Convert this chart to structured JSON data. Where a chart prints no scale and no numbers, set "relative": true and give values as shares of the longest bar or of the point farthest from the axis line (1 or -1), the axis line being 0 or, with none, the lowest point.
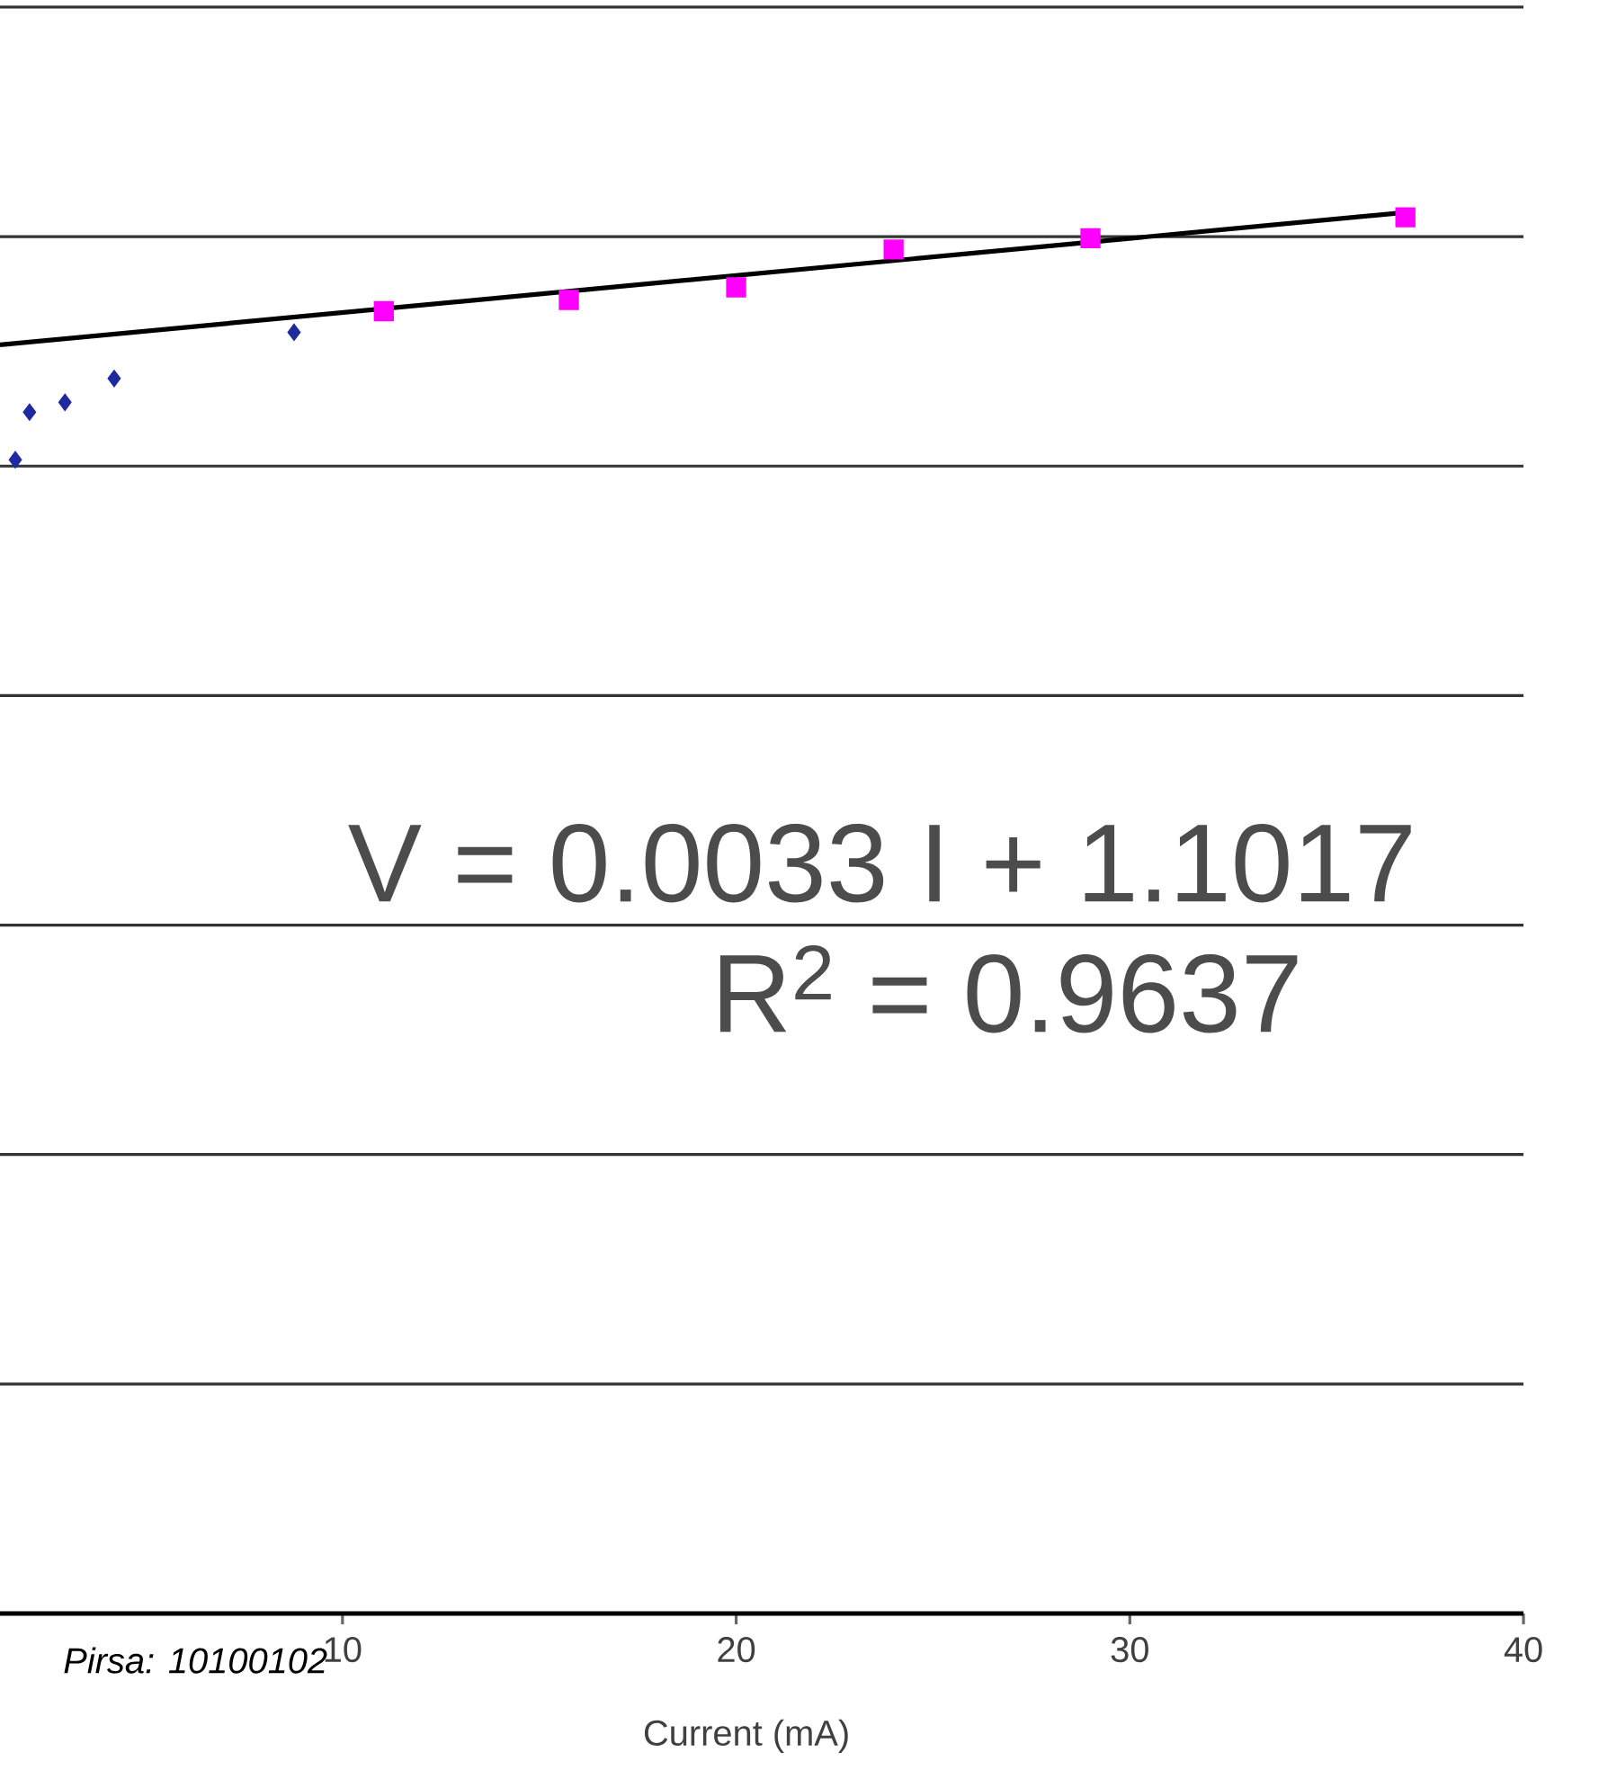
{
  "chart_data": {
    "type": "scatter",
    "xlabel": "Current (mA)",
    "relative": true,
    "xlim": [
      1.3,
      40
    ],
    "xticks": [
      10,
      20,
      30,
      40
    ],
    "tick_labels": "x",
    "grid": "y",
    "annotations": [
      "V = 0.0033 I + 1.1017",
      "R$^{2}$ = 0.9637",
      "Pirsa: 10100102"
    ],
    "series": [
      {
        "type": "scatter",
        "color": "#1f2aa0",
        "marker": "diamond",
        "x": [
          1.69,
          2.05,
          2.95,
          4.2,
          8.77
        ],
        "values": [
          0.823,
          0.857,
          0.864,
          0.881,
          0.914
        ]
      },
      {
        "type": "scatter",
        "color": "#ff00ff",
        "marker": "square",
        "x": [
          11.05,
          15.75,
          20.0,
          24.0,
          29.0,
          37.0
        ],
        "values": [
          0.929,
          0.937,
          0.946,
          0.973,
          0.981,
          0.996
        ]
      },
      {
        "type": "line",
        "color": "#000000",
        "marker": "none",
        "line_style": "solid",
        "x": [
          1.3,
          37.2
        ],
        "values": [
          0.905,
          1
        ]
      }
    ]
  }
}
